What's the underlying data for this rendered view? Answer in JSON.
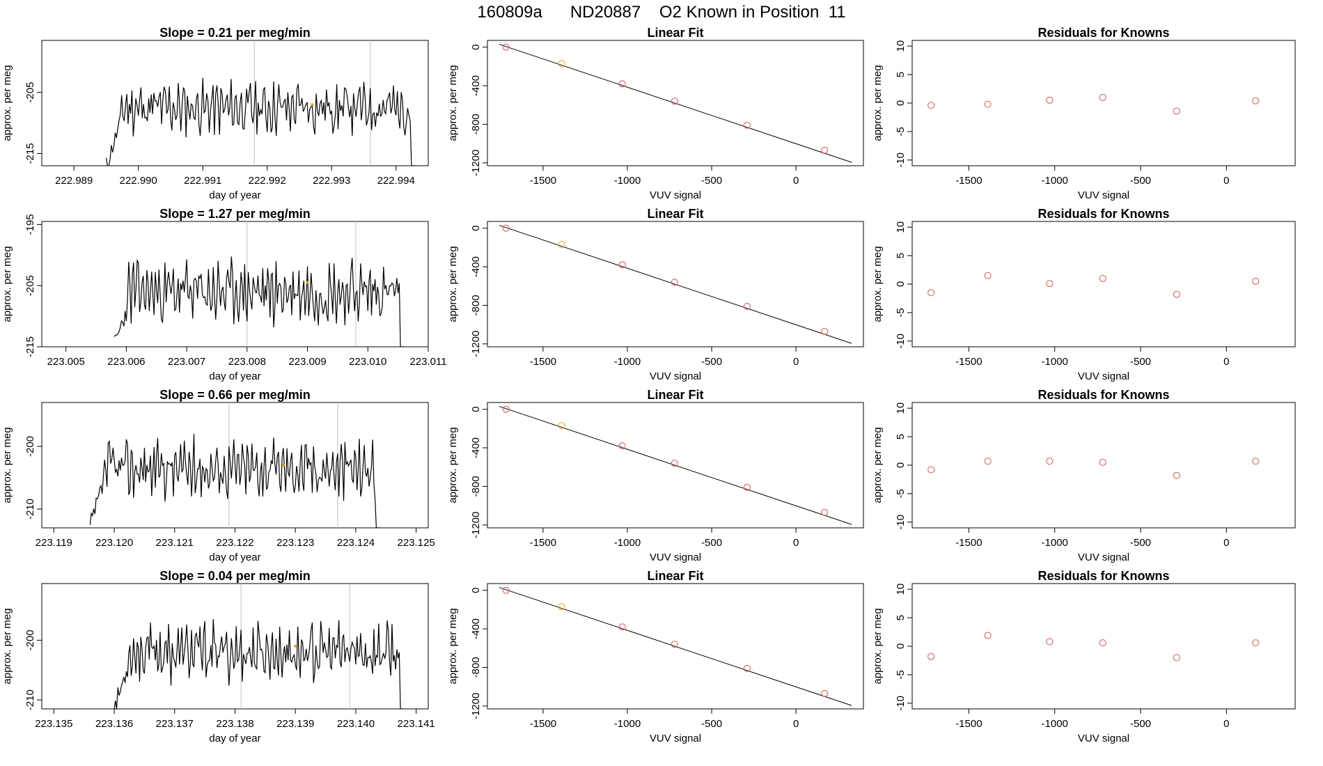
{
  "header": {
    "title": "160809a      ND20887    O2 Known in Position  11"
  },
  "colors": {
    "line": "#000000",
    "known_marker": "#e05050",
    "highlight_marker": "#f0a000",
    "vline": "#c0c0c0",
    "frame": "#000000"
  },
  "rows": [
    {
      "ts": {
        "title": "Slope =  0.21  per meg/min",
        "xlabel": "day of year",
        "ylabel": "approx. per meg",
        "xlim": [
          222.9885,
          222.9945
        ],
        "ylim": [
          -217,
          -196.5
        ],
        "xticks": [
          "222.989",
          "222.990",
          "222.991",
          "222.992",
          "222.993",
          "222.994"
        ],
        "yticks": [
          -215,
          -205
        ],
        "ytick_labels": [
          "-215",
          "-205"
        ],
        "vlines": [
          222.9918,
          222.9936
        ],
        "start": 222.9895,
        "end": 222.9943,
        "base": -207.5,
        "amp": 3.2,
        "seed": 11,
        "highlight": {
          "x": 222.9927,
          "y": -207
        }
      },
      "fit": {
        "title": "Linear Fit",
        "xlabel": "VUV signal",
        "ylabel": "approx. per meg"
      },
      "res": {
        "title": "Residuals for Knowns",
        "xlabel": "VUV signal",
        "ylabel": "approx. per meg",
        "y": [
          -0.4,
          -0.2,
          0.5,
          1.0,
          -1.4,
          0.4
        ]
      }
    },
    {
      "ts": {
        "title": "Slope =  1.27  per meg/min",
        "xlabel": "day of year",
        "ylabel": "approx. per meg",
        "xlim": [
          223.0046,
          223.011
        ],
        "ylim": [
          -215,
          -194.5
        ],
        "xticks": [
          "223.005",
          "223.006",
          "223.007",
          "223.008",
          "223.009",
          "223.010",
          "223.011"
        ],
        "yticks": [
          -215,
          -205,
          -195
        ],
        "ytick_labels": [
          "-215",
          "-205",
          "-195"
        ],
        "vlines": [
          223.008,
          223.0098
        ],
        "start": 223.0058,
        "end": 223.0106,
        "base": -206,
        "amp": 3.8,
        "seed": 23,
        "highlight": {
          "x": 223.009,
          "y": -204.5
        }
      },
      "fit": {
        "title": "Linear Fit",
        "xlabel": "VUV signal",
        "ylabel": "approx. per meg"
      },
      "res": {
        "title": "Residuals for Knowns",
        "xlabel": "VUV signal",
        "ylabel": "approx. per meg",
        "y": [
          -1.5,
          1.5,
          0.1,
          1.0,
          -1.8,
          0.5
        ]
      }
    },
    {
      "ts": {
        "title": "Slope =  0.66  per meg/min",
        "xlabel": "day of year",
        "ylabel": "approx. per meg",
        "xlim": [
          223.1188,
          223.1252
        ],
        "ylim": [
          -213,
          -193
        ],
        "xticks": [
          "223.119",
          "223.120",
          "223.121",
          "223.122",
          "223.123",
          "223.124",
          "223.125"
        ],
        "yticks": [
          -210,
          -200
        ],
        "ytick_labels": [
          "-210",
          "-200"
        ],
        "vlines": [
          223.1219,
          223.1237
        ],
        "start": 223.1196,
        "end": 223.1244,
        "base": -203.5,
        "amp": 3.5,
        "seed": 37,
        "highlight": {
          "x": 223.1228,
          "y": -203
        }
      },
      "fit": {
        "title": "Linear Fit",
        "xlabel": "VUV signal",
        "ylabel": "approx. per meg"
      },
      "res": {
        "title": "Residuals for Knowns",
        "xlabel": "VUV signal",
        "ylabel": "approx. per meg",
        "y": [
          -0.8,
          0.7,
          0.7,
          0.5,
          -1.8,
          0.7
        ]
      }
    },
    {
      "ts": {
        "title": "Slope =  0.04  per meg/min",
        "xlabel": "day of year",
        "ylabel": "approx. per meg",
        "xlim": [
          223.1348,
          223.1412
        ],
        "ylim": [
          -211.5,
          -190.5
        ],
        "xticks": [
          "223.135",
          "223.136",
          "223.137",
          "223.138",
          "223.139",
          "223.140",
          "223.141"
        ],
        "yticks": [
          -210,
          -200
        ],
        "ytick_labels": [
          "-210",
          "-200"
        ],
        "vlines": [
          223.1381,
          223.1399
        ],
        "start": 223.136,
        "end": 223.1408,
        "base": -202,
        "amp": 3.6,
        "seed": 53,
        "highlight": {
          "x": 223.139,
          "y": -201
        }
      },
      "fit": {
        "title": "Linear Fit",
        "xlabel": "VUV signal",
        "ylabel": "approx. per meg"
      },
      "res": {
        "title": "Residuals for Knowns",
        "xlabel": "VUV signal",
        "ylabel": "approx. per meg",
        "y": [
          -1.8,
          1.9,
          0.8,
          0.6,
          -2.0,
          0.6
        ]
      }
    }
  ],
  "chart_data": {
    "type": "line",
    "fit": {
      "type": "scatter",
      "x": [
        -1720,
        -1390,
        -1030,
        -720,
        -290,
        170
      ],
      "y": [
        0,
        -170,
        -380,
        -560,
        -810,
        -1070
      ],
      "highlight_index": 1,
      "line": {
        "x": [
          -1760,
          330
        ],
        "y": [
          30,
          -1195
        ]
      },
      "xlim": [
        -1830,
        400
      ],
      "ylim": [
        -1230,
        70
      ],
      "xticks": [
        -1500,
        -1000,
        -500,
        0
      ],
      "xtick_labels": [
        "-1500",
        "-1000",
        "-500",
        "0"
      ],
      "yticks": [
        0,
        -400,
        -800,
        -1200
      ],
      "ytick_labels": [
        "0",
        "-400",
        "-800",
        "-1200"
      ]
    },
    "residuals": {
      "type": "scatter",
      "x": [
        -1720,
        -1390,
        -1030,
        -720,
        -290,
        170
      ],
      "xlim": [
        -1830,
        400
      ],
      "ylim": [
        -11,
        11
      ],
      "xticks": [
        -1500,
        -1000,
        -500,
        0
      ],
      "xtick_labels": [
        "-1500",
        "-1000",
        "-500",
        "0"
      ],
      "yticks": [
        10,
        5,
        0,
        -5,
        -10
      ],
      "ytick_labels": [
        "10",
        "5",
        "0",
        "-5",
        "-10"
      ]
    }
  }
}
